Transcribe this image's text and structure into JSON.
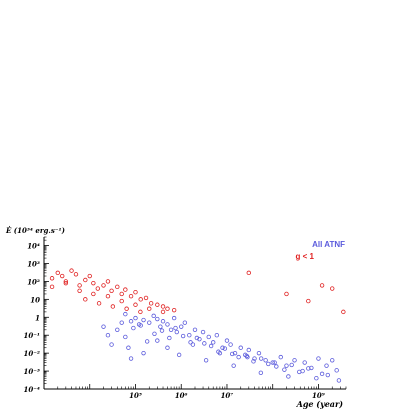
{
  "chart_data": {
    "type": "scatter",
    "title": "",
    "ylabel": "Ė (10³⁴ erg.s⁻¹)",
    "xlabel": "Age (year)",
    "x_scale": "log",
    "y_scale": "log",
    "xlim": [
      1000,
      4000000000
    ],
    "ylim": [
      0.0001,
      30000
    ],
    "grid": false,
    "legend_position": "top-right",
    "x_ticks": [
      {
        "value": 100000,
        "label": "10⁵"
      },
      {
        "value": 1000000,
        "label": "10⁶"
      },
      {
        "value": 10000000,
        "label": "10⁷"
      },
      {
        "value": 1000000000,
        "label": "10⁹"
      }
    ],
    "y_ticks": [
      {
        "value": 10000,
        "label": "10⁴"
      },
      {
        "value": 1000,
        "label": "10³"
      },
      {
        "value": 100,
        "label": "10²"
      },
      {
        "value": 10,
        "label": "10"
      },
      {
        "value": 1,
        "label": "1"
      },
      {
        "value": 0.1,
        "label": "10⁻¹"
      },
      {
        "value": 0.01,
        "label": "10⁻²"
      },
      {
        "value": 0.001,
        "label": "10⁻³"
      },
      {
        "value": 0.0001,
        "label": "10⁻⁴"
      }
    ],
    "series": [
      {
        "name": "All ATNF",
        "color": "#5b5bdc",
        "marker": "open-circle",
        "x": [
          20000,
          25000,
          30000,
          40000,
          50000,
          60000,
          70000,
          80000,
          100000,
          120000,
          150000,
          200000,
          250000,
          300000,
          350000,
          400000,
          500000,
          600000,
          700000,
          800000,
          1000000,
          1200000,
          1500000,
          2000000,
          2500000,
          3000000,
          4000000,
          5000000,
          6000000,
          8000000,
          10000000,
          12000000,
          15000000,
          20000000,
          25000000,
          30000000,
          40000000,
          50000000,
          70000000,
          100000000,
          150000000,
          200000000,
          300000000,
          500000000,
          700000000,
          1000000000,
          1500000000,
          2000000000,
          80000,
          150000,
          300000,
          500000,
          900000,
          1800000,
          3500000,
          7000000,
          14000000,
          28000000,
          55000000,
          110000000,
          220000000,
          450000000,
          900000000,
          1600000000,
          2800000000,
          60000,
          90000,
          130000,
          180000,
          260000,
          380000,
          550000,
          750000,
          1100000,
          1600000,
          2200000,
          3200000,
          4500000,
          6500000,
          9000000,
          13000000,
          18000000,
          27000000,
          38000000,
          56000000,
          80000000,
          120000000,
          180000000,
          260000000,
          380000000,
          600000000,
          1200000000,
          2500000000
        ],
        "y": [
          0.3,
          0.1,
          0.03,
          0.2,
          0.5,
          0.08,
          0.02,
          0.6,
          0.9,
          0.4,
          0.7,
          0.5,
          1.2,
          0.8,
          0.3,
          0.6,
          0.4,
          0.2,
          0.9,
          0.15,
          0.3,
          0.5,
          0.1,
          0.2,
          0.06,
          0.15,
          0.08,
          0.04,
          0.1,
          0.02,
          0.05,
          0.03,
          0.01,
          0.02,
          0.008,
          0.015,
          0.005,
          0.01,
          0.004,
          0.003,
          0.006,
          0.002,
          0.004,
          0.003,
          0.0015,
          0.005,
          0.002,
          0.004,
          0.005,
          0.01,
          0.05,
          0.02,
          0.008,
          0.03,
          0.004,
          0.01,
          0.002,
          0.006,
          0.0008,
          0.003,
          0.0005,
          0.001,
          0.0004,
          0.0006,
          0.0003,
          1.5,
          0.25,
          0.35,
          0.045,
          0.12,
          0.18,
          0.07,
          0.25,
          0.09,
          0.04,
          0.07,
          0.035,
          0.025,
          0.012,
          0.018,
          0.009,
          0.006,
          0.007,
          0.0035,
          0.005,
          0.0025,
          0.0018,
          0.0012,
          0.0022,
          0.0009,
          0.0014,
          0.0007,
          0.0011
        ]
      },
      {
        "name": "g < 1",
        "color": "#e02020",
        "marker": "open-circle",
        "x": [
          1500,
          2000,
          2500,
          3000,
          4000,
          5000,
          6000,
          8000,
          10000,
          12000,
          15000,
          20000,
          25000,
          30000,
          40000,
          50000,
          60000,
          80000,
          100000,
          130000,
          170000,
          220000,
          300000,
          400000,
          500000,
          700000,
          1500,
          3000,
          6000,
          12000,
          25000,
          50000,
          100000,
          200000,
          400000,
          8000,
          16000,
          32000,
          64000,
          128000,
          30000000,
          200000000,
          600000000,
          1200000000,
          2000000000,
          3500000000
        ],
        "y": [
          150,
          300,
          200,
          100,
          400,
          250,
          60,
          120,
          200,
          80,
          40,
          60,
          100,
          30,
          50,
          20,
          35,
          15,
          25,
          10,
          12,
          6,
          5,
          4,
          3,
          2.5,
          50,
          80,
          30,
          20,
          15,
          8,
          5,
          3,
          2,
          10,
          6,
          4,
          3,
          2,
          300,
          20,
          8,
          60,
          40,
          2
        ]
      }
    ]
  }
}
